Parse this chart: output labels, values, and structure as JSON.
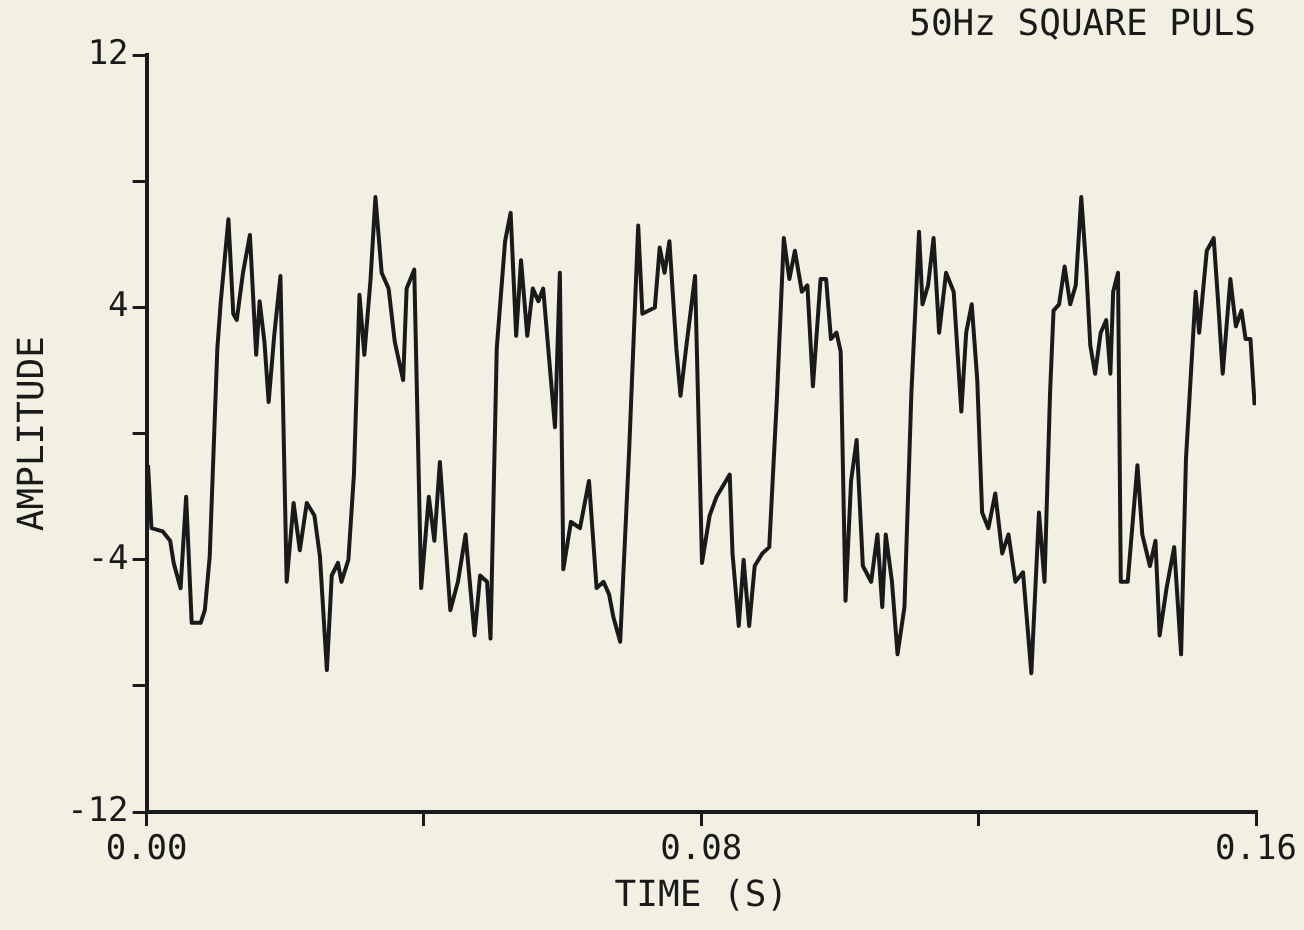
{
  "chart_data": {
    "type": "line",
    "title": "50Hz SQUARE PULS",
    "xlabel": "TIME (S)",
    "ylabel": "AMPLITUDE",
    "xlim": [
      0,
      0.16
    ],
    "xticks": [
      {
        "value": 0,
        "label": "0.00"
      },
      {
        "value": 0.04,
        "label": null
      },
      0.08,
      {
        "value": 0.12,
        "label": null
      },
      0.16
    ],
    "ylim": [
      -12,
      12
    ],
    "yticks": [
      -12,
      {
        "value": -8,
        "label": null
      },
      -4,
      {
        "value": 0,
        "label": null
      },
      4,
      {
        "value": 8,
        "label": null
      },
      12
    ],
    "grid": false,
    "legend": false,
    "series": [
      {
        "color": "#1a1a1a",
        "x": [
          0.0002,
          0.0007,
          0.0023,
          0.0034,
          0.0039,
          0.0049,
          0.0057,
          0.0065,
          0.0078,
          0.0084,
          0.0091,
          0.0102,
          0.0107,
          0.0118,
          0.0125,
          0.013,
          0.0139,
          0.0149,
          0.0158,
          0.0163,
          0.017,
          0.0176,
          0.0184,
          0.0193,
          0.0202,
          0.0212,
          0.0221,
          0.0231,
          0.0242,
          0.025,
          0.026,
          0.0267,
          0.0276,
          0.0281,
          0.0291,
          0.0299,
          0.0307,
          0.0314,
          0.0323,
          0.033,
          0.0339,
          0.0349,
          0.0358,
          0.037,
          0.0375,
          0.0386,
          0.0396,
          0.0407,
          0.0415,
          0.0423,
          0.0438,
          0.0449,
          0.046,
          0.0473,
          0.0481,
          0.0491,
          0.0496,
          0.0505,
          0.0517,
          0.0525,
          0.0533,
          0.054,
          0.0549,
          0.0557,
          0.0565,
          0.0572,
          0.058,
          0.0589,
          0.0596,
          0.0601,
          0.0612,
          0.0625,
          0.0638,
          0.0649,
          0.0659,
          0.0667,
          0.0673,
          0.0683,
          0.0696,
          0.0709,
          0.0715,
          0.0733,
          0.074,
          0.0747,
          0.0754,
          0.0764,
          0.077,
          0.0778,
          0.0791,
          0.0801,
          0.0812,
          0.0822,
          0.0841,
          0.0845,
          0.0854,
          0.0861,
          0.0869,
          0.0877,
          0.0888,
          0.0898,
          0.0909,
          0.0919,
          0.0927,
          0.0935,
          0.0945,
          0.0953,
          0.0961,
          0.0972,
          0.098,
          0.0987,
          0.0995,
          0.1001,
          0.1008,
          0.1016,
          0.1024,
          0.1033,
          0.1045,
          0.1054,
          0.1061,
          0.1066,
          0.1075,
          0.1083,
          0.1093,
          0.1103,
          0.1114,
          0.1119,
          0.1127,
          0.1135,
          0.1143,
          0.1153,
          0.1164,
          0.1175,
          0.1182,
          0.119,
          0.1198,
          0.1205,
          0.1214,
          0.1224,
          0.1234,
          0.1243,
          0.1253,
          0.1264,
          0.1276,
          0.1287,
          0.1295,
          0.1303,
          0.1308,
          0.1316,
          0.1324,
          0.1332,
          0.134,
          0.1348,
          0.1355,
          0.1361,
          0.1368,
          0.1376,
          0.1384,
          0.139,
          0.1394,
          0.1401,
          0.1405,
          0.1415,
          0.1429,
          0.1436,
          0.1447,
          0.1455,
          0.1461,
          0.1471,
          0.1482,
          0.1492,
          0.1499,
          0.1513,
          0.1518,
          0.1529,
          0.1539,
          0.1545,
          0.1552,
          0.1563,
          0.1571,
          0.1579,
          0.1585,
          0.1592,
          0.1598
        ],
        "values": [
          -1.0,
          -3.0,
          -3.1,
          -3.4,
          -4.1,
          -4.9,
          -2.0,
          -6.0,
          -6.0,
          -5.6,
          -3.9,
          2.7,
          4.2,
          6.8,
          3.8,
          3.6,
          5.1,
          6.3,
          2.5,
          4.2,
          2.9,
          1.0,
          3.1,
          5.0,
          -4.7,
          -2.2,
          -3.7,
          -2.2,
          -2.6,
          -3.9,
          -7.5,
          -4.5,
          -4.1,
          -4.7,
          -4.0,
          -1.3,
          4.4,
          2.5,
          4.9,
          7.5,
          5.1,
          4.6,
          2.9,
          1.7,
          4.6,
          5.2,
          -4.9,
          -2.0,
          -3.4,
          -0.9,
          -5.6,
          -4.7,
          -3.2,
          -6.4,
          -4.5,
          -4.7,
          -6.5,
          2.7,
          6.1,
          7.0,
          3.1,
          5.5,
          3.1,
          4.6,
          4.2,
          4.6,
          2.5,
          0.2,
          5.1,
          -4.3,
          -2.8,
          -3.0,
          -1.5,
          -4.9,
          -4.7,
          -5.1,
          -5.8,
          -6.6,
          -0.5,
          6.6,
          3.8,
          4.0,
          5.9,
          5.1,
          6.1,
          2.7,
          1.2,
          2.7,
          5.0,
          -4.1,
          -2.6,
          -2.0,
          -1.3,
          -3.8,
          -6.1,
          -4.0,
          -6.1,
          -4.2,
          -3.8,
          -3.6,
          1.1,
          6.2,
          4.9,
          5.8,
          4.5,
          4.7,
          1.5,
          4.9,
          4.9,
          3.0,
          3.2,
          2.6,
          -5.3,
          -1.5,
          -0.2,
          -4.2,
          -4.7,
          -3.2,
          -5.5,
          -3.2,
          -4.7,
          -7.0,
          -5.5,
          1.3,
          6.4,
          4.1,
          4.7,
          6.2,
          3.2,
          5.1,
          4.5,
          0.7,
          3.2,
          4.1,
          1.7,
          -2.5,
          -3.0,
          -1.9,
          -3.8,
          -3.2,
          -4.7,
          -4.4,
          -7.6,
          -2.5,
          -4.7,
          1.3,
          3.9,
          4.1,
          5.3,
          4.1,
          4.7,
          7.5,
          5.3,
          2.8,
          1.9,
          3.2,
          3.6,
          1.9,
          4.5,
          5.1,
          -4.7,
          -4.7,
          -1.0,
          -3.2,
          -4.2,
          -3.4,
          -6.4,
          -4.9,
          -3.6,
          -7.0,
          -0.8,
          4.5,
          3.2,
          5.8,
          6.2,
          4.3,
          1.9,
          4.9,
          3.4,
          3.9,
          3.0,
          3.0,
          0.9
        ]
      }
    ]
  }
}
